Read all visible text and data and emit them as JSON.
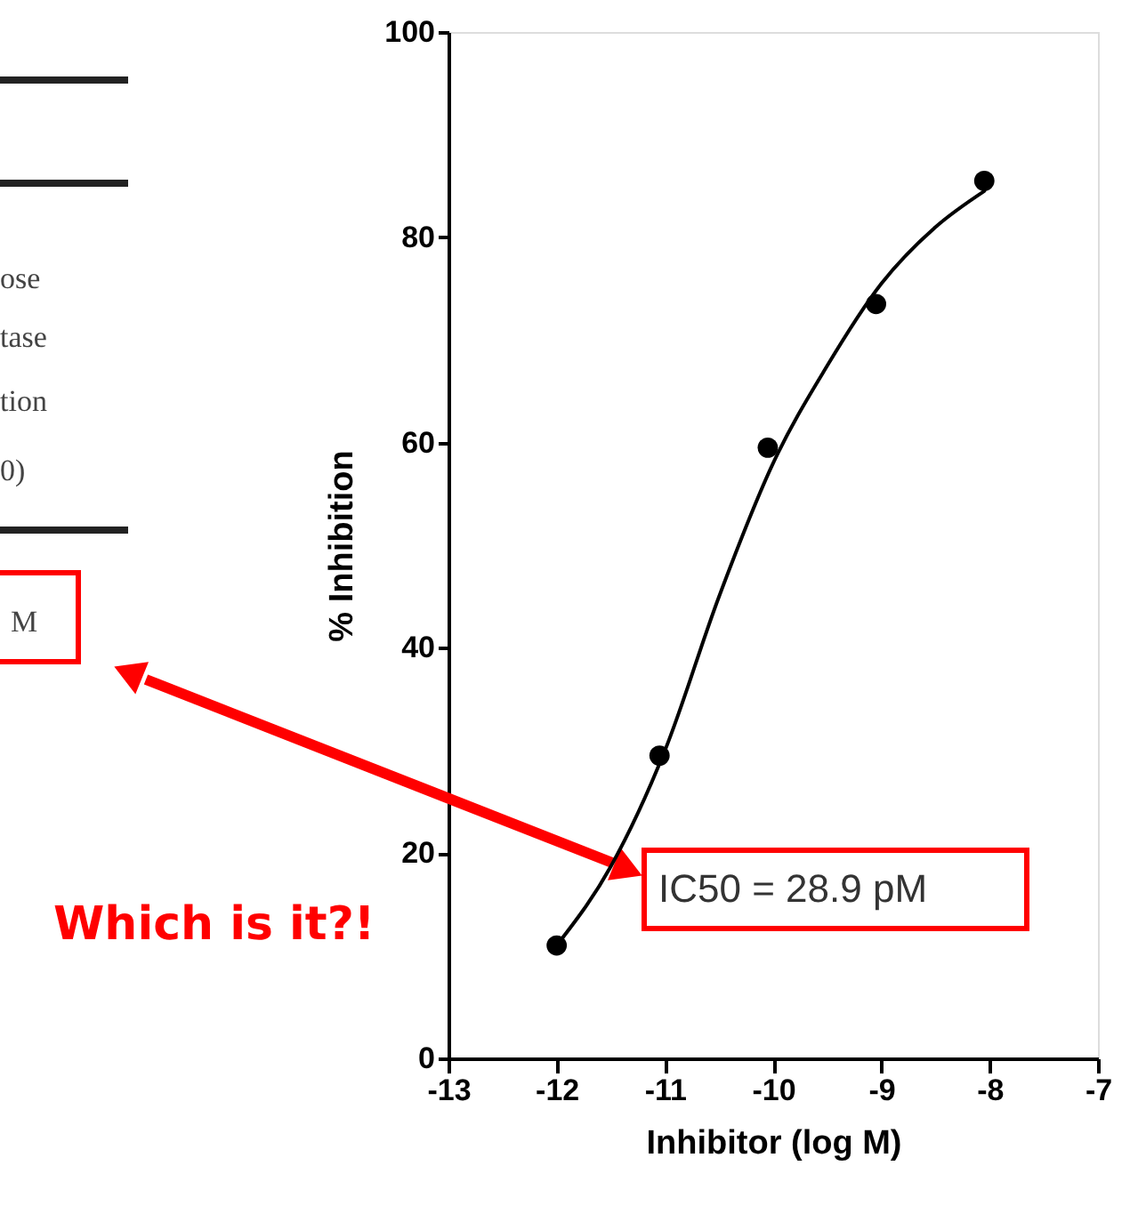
{
  "chart_data": {
    "type": "scatter",
    "xlabel": "Inhibitor (log M)",
    "ylabel": "% Inhibition",
    "xlim": [
      -13,
      -7
    ],
    "xticks": [
      -13,
      -12,
      -11,
      -10,
      -9,
      -8,
      -7
    ],
    "ylim": [
      0,
      100
    ],
    "yticks": [
      0,
      20,
      40,
      60,
      80,
      100
    ],
    "grid": false,
    "legend": false,
    "marker": "circle",
    "series": [
      {
        "type": "scatter",
        "color": "#000000",
        "x": [
          -12,
          -11.05,
          -10.05,
          -9.05,
          -8.05
        ],
        "values": [
          11,
          29.5,
          59.5,
          73.5,
          85.5
        ]
      },
      {
        "type": "line",
        "color": "#000000",
        "line_style": "solid",
        "marker": "none",
        "x": [
          -12,
          -11.5,
          -11,
          -10.5,
          -10,
          -9.5,
          -9,
          -8.5,
          -8.05
        ],
        "values": [
          11,
          18.7,
          30,
          45,
          58,
          67.5,
          75.5,
          81,
          84.5
        ]
      }
    ],
    "annotations": [
      "IC50 = 28.9 pM",
      "Which is it?!",
      "ose",
      "tase",
      "tion",
      "0)",
      "M"
    ]
  }
}
